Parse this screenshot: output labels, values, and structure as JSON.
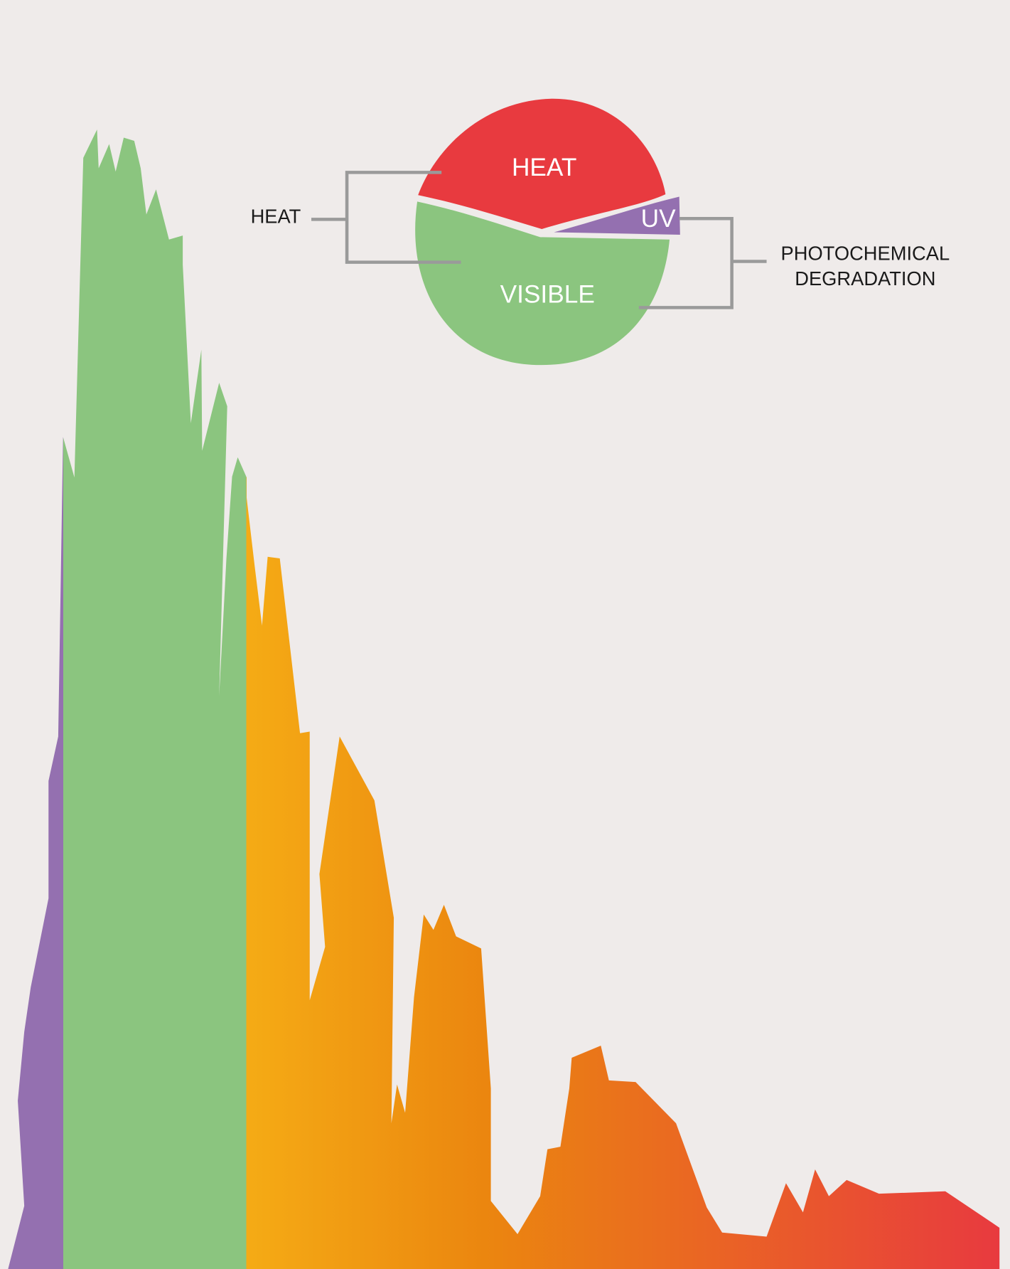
{
  "pie": {
    "heat": "HEAT",
    "uv": "UV",
    "visible": "VISIBLE"
  },
  "labels": {
    "heat": "HEAT",
    "photochemical_degradation": [
      "PHOTOCHEMICAL",
      "DEGRADATION"
    ]
  }
}
